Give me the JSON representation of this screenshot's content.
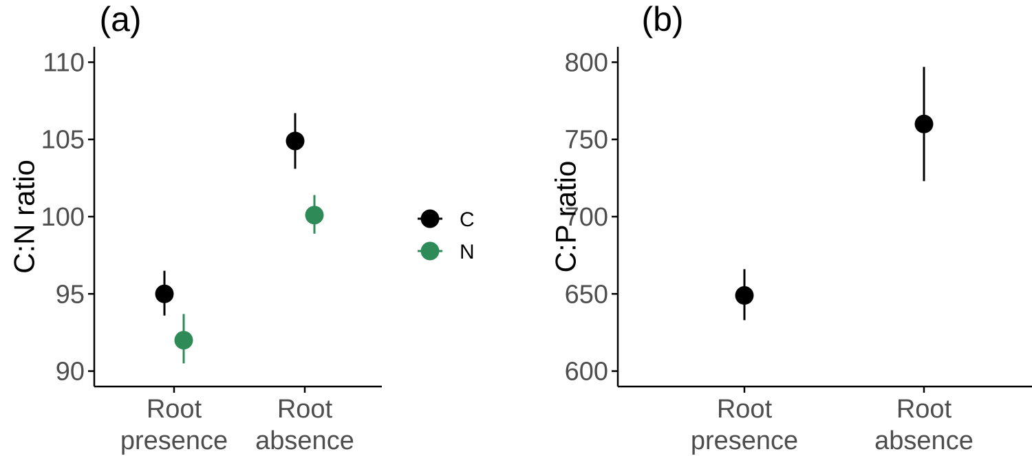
{
  "colors": {
    "C": "#000000",
    "N": "#2e8b57",
    "axis": "#000000",
    "tick_text": "#4d4d4d"
  },
  "legend": {
    "items": [
      {
        "key": "C",
        "label": "C"
      },
      {
        "key": "N",
        "label": "N"
      }
    ]
  },
  "chart_data": [
    {
      "type": "scatter",
      "panel_label": "(a)",
      "ylabel": "C:N ratio",
      "xlabel": "",
      "categories": [
        "Root\npresence",
        "Root\nabsence"
      ],
      "yticks": [
        90,
        95,
        100,
        105,
        110
      ],
      "ylim": [
        89.0,
        111.0
      ],
      "series": [
        {
          "name": "C",
          "color": "#000000",
          "values": [
            95.0,
            104.9
          ],
          "ci_low": [
            93.6,
            103.1
          ],
          "ci_high": [
            96.5,
            106.7
          ]
        },
        {
          "name": "N",
          "color": "#2e8b57",
          "values": [
            92.0,
            100.1
          ],
          "ci_low": [
            90.5,
            98.9
          ],
          "ci_high": [
            93.7,
            101.4
          ]
        }
      ],
      "legend_position": "right",
      "grid": false
    },
    {
      "type": "scatter",
      "panel_label": "(b)",
      "ylabel": "C:P ratio",
      "xlabel": "",
      "categories": [
        "Root\npresence",
        "Root\nabsence"
      ],
      "yticks": [
        600,
        650,
        700,
        750,
        800
      ],
      "ylim": [
        590,
        810
      ],
      "series": [
        {
          "color": "#000000",
          "values": [
            649,
            760
          ],
          "ci_low": [
            633,
            723
          ],
          "ci_high": [
            666,
            797
          ]
        }
      ],
      "grid": false
    }
  ]
}
